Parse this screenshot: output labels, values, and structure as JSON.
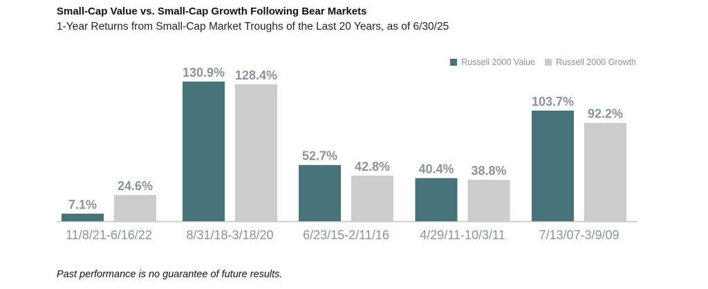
{
  "chart_data": {
    "type": "bar",
    "title": "Small-Cap Value vs. Small-Cap Growth Following Bear Markets",
    "subtitle": "1-Year Returns from Small-Cap Market Troughs of the Last 20 Years, as of 6/30/25",
    "categories": [
      "11/8/21-6/16/22",
      "8/31/18-3/18/20",
      "6/23/15-2/11/16",
      "4/29/11-10/3/11",
      "7/13/07-3/9/09"
    ],
    "series": [
      {
        "name": "Russell 2000 Value",
        "color": "#46737a",
        "values": [
          7.1,
          130.9,
          52.7,
          40.4,
          103.7
        ],
        "labels": [
          "7.1%",
          "130.9%",
          "52.7%",
          "40.4%",
          "103.7%"
        ]
      },
      {
        "name": "Russell 2000 Growth",
        "color": "#cccccc",
        "values": [
          24.6,
          128.4,
          42.8,
          38.8,
          92.2
        ],
        "labels": [
          "24.6%",
          "128.4%",
          "42.8%",
          "38.8%",
          "92.2%"
        ]
      }
    ],
    "ylim": [
      0,
      130.9
    ],
    "legend_position": "top-right",
    "grid": false,
    "footnote": "Past performance is no guarantee of future results."
  }
}
